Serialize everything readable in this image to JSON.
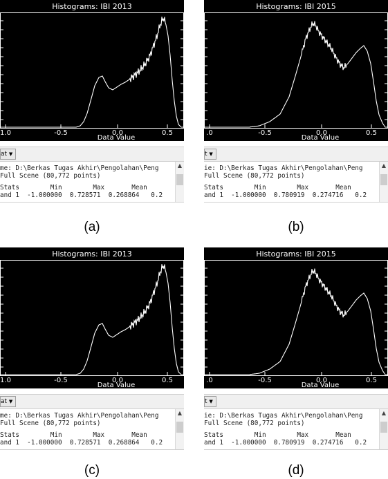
{
  "panels": [
    {
      "title": "Histograms: IBI 2013",
      "x_label": "Data Value",
      "ticks": [
        "1.0",
        "-0.5",
        "0.0",
        "0.5"
      ],
      "dropdown": "at",
      "file_line": "me: D:\\Berkas Tugas Akhir\\Pengolahan\\Peng",
      "scene_line": "Full Scene (80,772 points)",
      "stats_header": "Stats        Min        Max       Mean",
      "stats_row": "and 1  -1.000000  0.728571  0.268864   0.2",
      "caption": "(a)",
      "curve": "2013"
    },
    {
      "title": "Histograms: IBI 2015",
      "x_label": "Data Value",
      "ticks": [
        ".0",
        "-0.5",
        "0.0",
        "0.5"
      ],
      "dropdown": "t",
      "file_line": "ie: D:\\Berkas Tugas Akhir\\Pengolahan\\Peng",
      "scene_line": "Full Scene (80,772 points)",
      "stats_header": "Stats        Min        Max       Mean",
      "stats_row": "and 1  -1.000000  0.780919  0.274716   0.2",
      "caption": "(b)",
      "curve": "2015"
    },
    {
      "title": "Histograms: IBI 2013",
      "x_label": "Data Value",
      "ticks": [
        "1.0",
        "-0.5",
        "0.0",
        "0.5"
      ],
      "dropdown": "at",
      "file_line": "me: D:\\Berkas Tugas Akhir\\Pengolahan\\Peng",
      "scene_line": "Full Scene (80,772 points)",
      "stats_header": "Stats        Min        Max       Mean",
      "stats_row": "and 1  -1.000000  0.728571  0.268864   0.2",
      "caption": "(c)",
      "curve": "2013"
    },
    {
      "title": "Histograms: IBI 2015",
      "x_label": "Data Value",
      "ticks": [
        ".0",
        "-0.5",
        "0.0",
        "0.5"
      ],
      "dropdown": "t",
      "file_line": "ie: D:\\Berkas Tugas Akhir\\Pengolahan\\Peng",
      "scene_line": "Full Scene (80,772 points)",
      "stats_header": "Stats        Min        Max       Mean",
      "stats_row": "and 1  -1.000000  0.780919  0.274716   0.2",
      "caption": "(d)",
      "curve": "2015"
    }
  ],
  "colors": {
    "plot_background": "#000000",
    "plot_foreground": "#ffffff"
  }
}
